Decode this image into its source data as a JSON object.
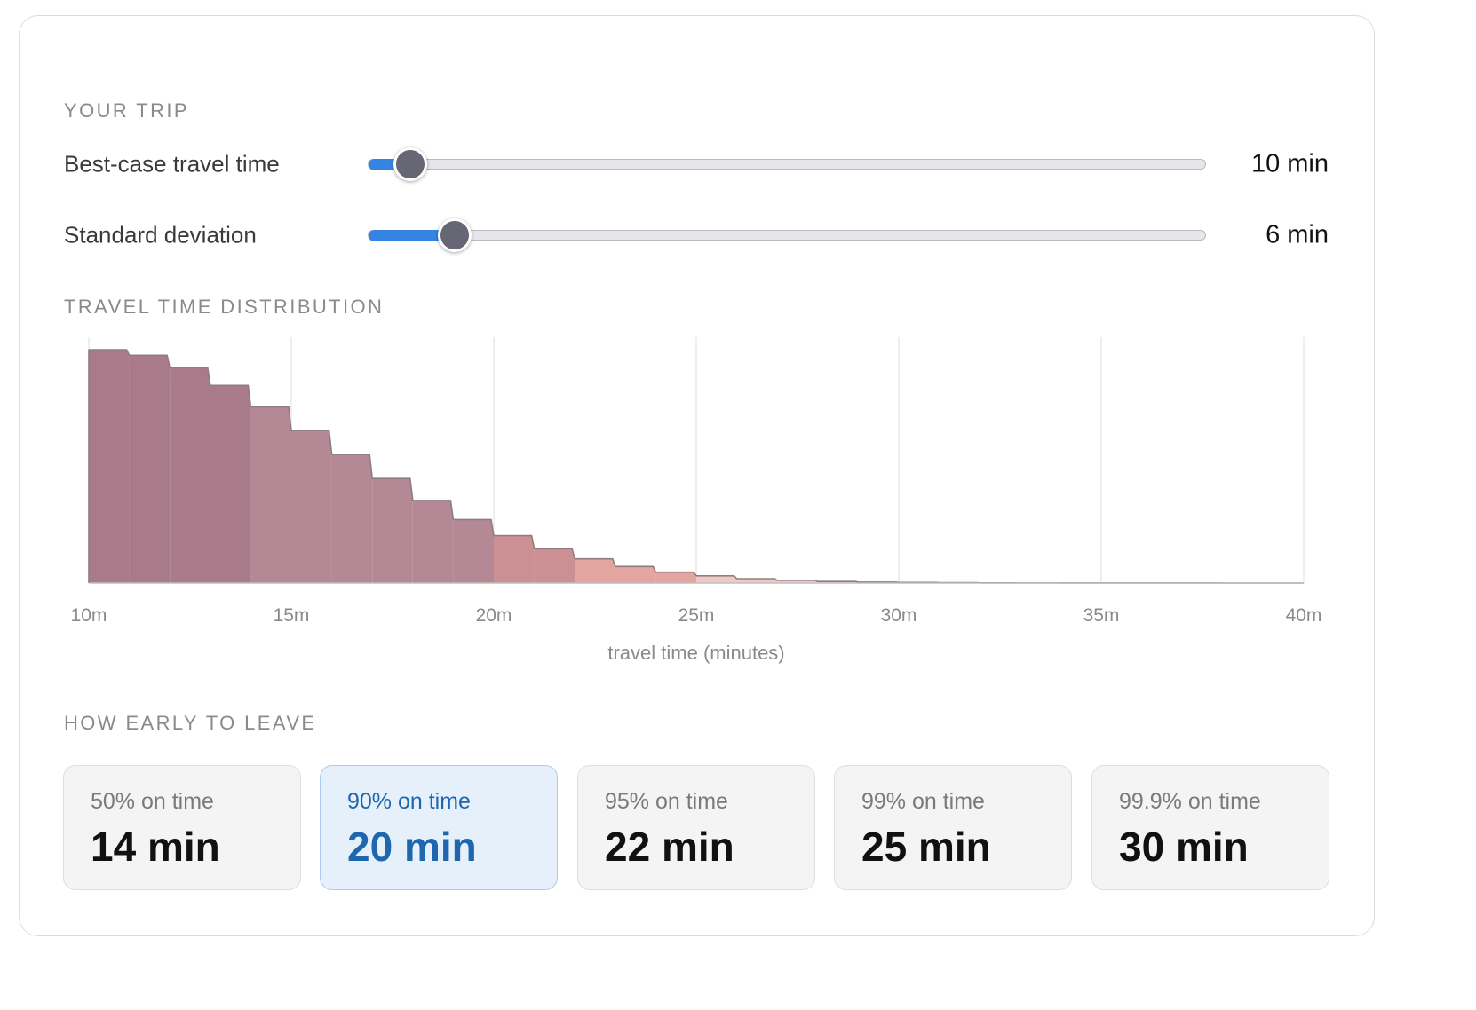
{
  "sections": {
    "trip": "YOUR TRIP",
    "distribution": "TRAVEL TIME DISTRIBUTION",
    "leave": "HOW EARLY TO LEAVE"
  },
  "sliders": [
    {
      "label": "Best-case travel time",
      "value_text": "10 min",
      "fraction": 0.05
    },
    {
      "label": "Standard deviation",
      "value_text": "6 min",
      "fraction": 0.103
    }
  ],
  "colors": {
    "accent": "#3584e4",
    "selected_text": "#1f66b0",
    "thumb": "#666675"
  },
  "percentiles": [
    {
      "label": "50% on time",
      "value": "14 min",
      "selected": false
    },
    {
      "label": "90% on time",
      "value": "20 min",
      "selected": true
    },
    {
      "label": "95% on time",
      "value": "22 min",
      "selected": false
    },
    {
      "label": "99% on time",
      "value": "25 min",
      "selected": false
    },
    {
      "label": "99.9% on time",
      "value": "30 min",
      "selected": false
    }
  ],
  "chart_data": {
    "type": "area",
    "xlabel": "travel time (minutes)",
    "xlim": [
      10,
      40
    ],
    "x_ticks": [
      10,
      15,
      20,
      25,
      30,
      35,
      40
    ],
    "x_tick_labels": [
      "10m",
      "15m",
      "20m",
      "25m",
      "30m",
      "35m",
      "40m"
    ],
    "grid": true,
    "bins": [
      10,
      11,
      12,
      13,
      14,
      15,
      16,
      17,
      18,
      19,
      20,
      21,
      22,
      23,
      24,
      25,
      26,
      27,
      28,
      29,
      30,
      31,
      32,
      33,
      34,
      35,
      36,
      37,
      38,
      39
    ],
    "density": [
      1.0,
      0.976,
      0.923,
      0.847,
      0.755,
      0.653,
      0.551,
      0.448,
      0.354,
      0.272,
      0.203,
      0.147,
      0.104,
      0.071,
      0.047,
      0.031,
      0.019,
      0.012,
      0.007,
      0.004,
      0.0025,
      0.0015,
      0.0009,
      0.0005,
      0.0003,
      0.0002,
      0.0001,
      5e-05,
      3e-05,
      1e-05
    ],
    "bands": [
      {
        "from": 10,
        "to": 14,
        "color": "#a97a89"
      },
      {
        "from": 14,
        "to": 20,
        "color": "#b48895"
      },
      {
        "from": 20,
        "to": 22,
        "color": "#cc8f93"
      },
      {
        "from": 22,
        "to": 25,
        "color": "#e3a59f"
      },
      {
        "from": 25,
        "to": 30,
        "color": "#efc9c4"
      },
      {
        "from": 30,
        "to": 40,
        "color": "#f6e7e5"
      }
    ]
  }
}
